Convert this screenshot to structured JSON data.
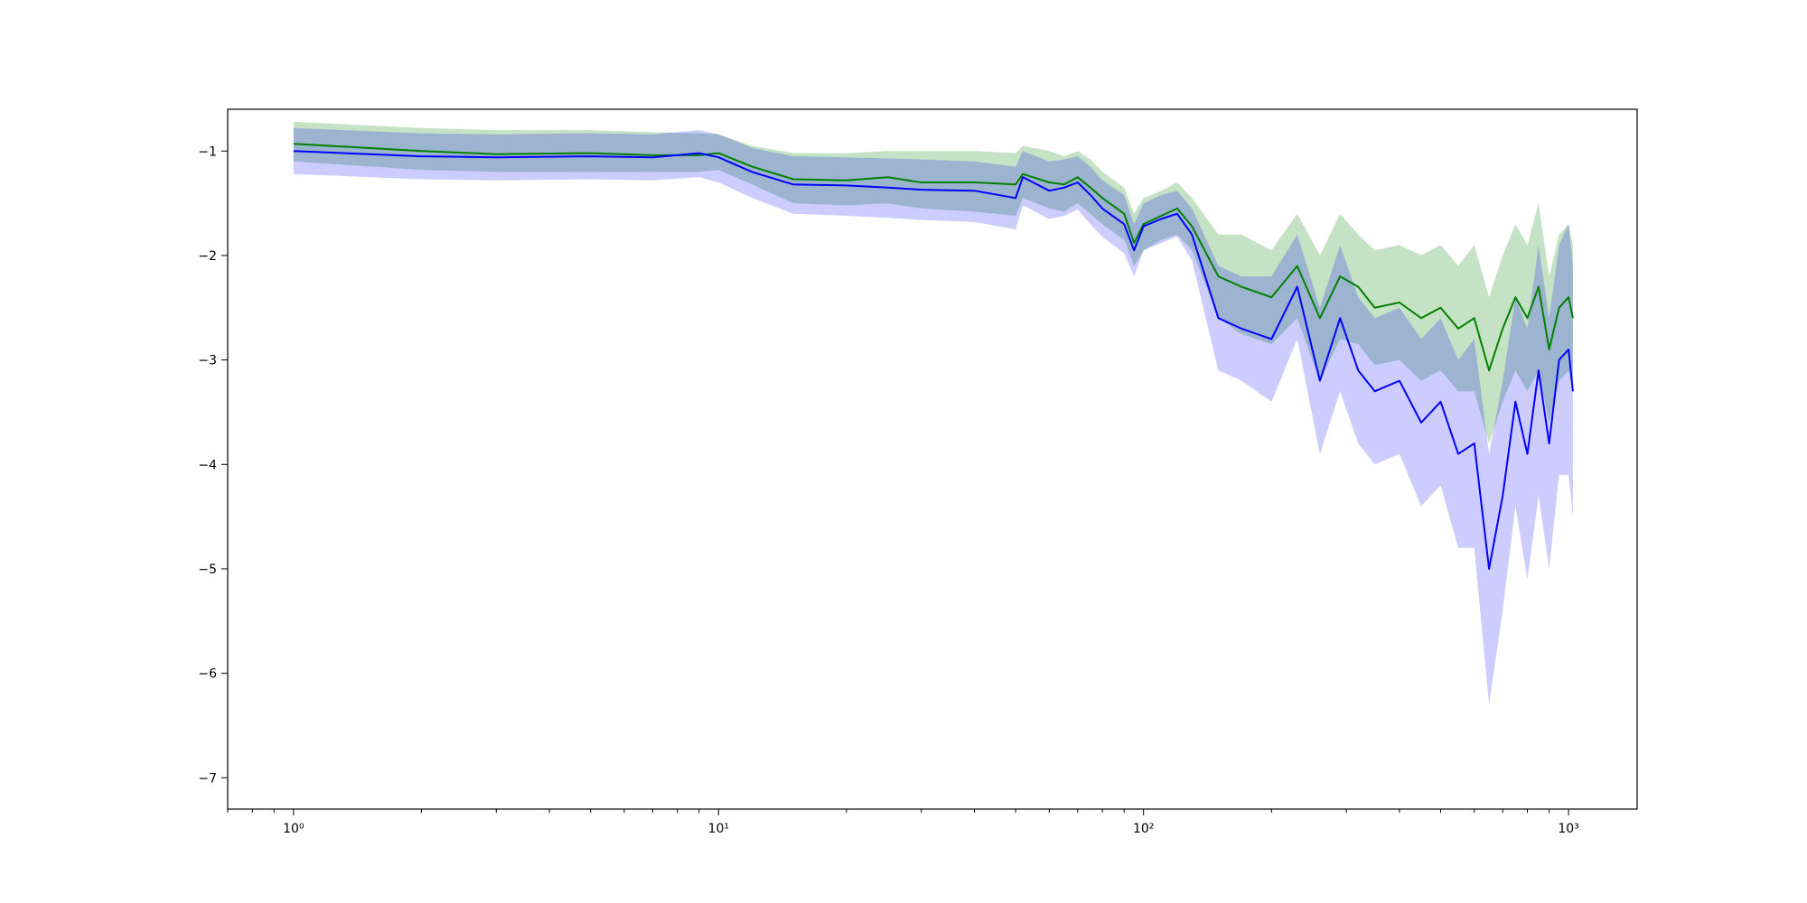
{
  "chart_data": {
    "type": "line",
    "title": "",
    "xlabel": "",
    "ylabel": "",
    "x_scale": "log",
    "xlim": [
      0.7,
      1450
    ],
    "ylim": [
      -7.3,
      -0.6
    ],
    "grid": false,
    "legend": "none",
    "x_ticks": [
      {
        "value": 1,
        "label": "10⁰"
      },
      {
        "value": 10,
        "label": "10¹"
      },
      {
        "value": 100,
        "label": "10²"
      },
      {
        "value": 1000,
        "label": "10³"
      }
    ],
    "y_ticks": [
      {
        "value": -1,
        "label": "−1"
      },
      {
        "value": -2,
        "label": "−2"
      },
      {
        "value": -3,
        "label": "−3"
      },
      {
        "value": -4,
        "label": "−4"
      },
      {
        "value": -5,
        "label": "−5"
      },
      {
        "value": -6,
        "label": "−6"
      },
      {
        "value": -7,
        "label": "−7"
      }
    ],
    "series": [
      {
        "color": "#008000",
        "band_color": "#7fbf7f",
        "band_opacity": 0.45,
        "x": [
          1,
          2,
          3,
          5,
          7,
          9,
          10,
          12,
          15,
          20,
          25,
          30,
          40,
          50,
          52,
          60,
          65,
          70,
          75,
          80,
          90,
          95,
          100,
          110,
          120,
          130,
          150,
          170,
          200,
          230,
          260,
          290,
          320,
          350,
          400,
          450,
          500,
          550,
          600,
          650,
          700,
          750,
          800,
          850,
          900,
          950,
          1000,
          1024
        ],
        "y": [
          -0.93,
          -1.0,
          -1.03,
          -1.02,
          -1.04,
          -1.04,
          -1.02,
          -1.15,
          -1.27,
          -1.28,
          -1.25,
          -1.3,
          -1.3,
          -1.32,
          -1.22,
          -1.3,
          -1.32,
          -1.25,
          -1.35,
          -1.45,
          -1.6,
          -1.88,
          -1.7,
          -1.62,
          -1.55,
          -1.72,
          -2.2,
          -2.3,
          -2.4,
          -2.1,
          -2.6,
          -2.2,
          -2.3,
          -2.5,
          -2.45,
          -2.6,
          -2.5,
          -2.7,
          -2.6,
          -3.1,
          -2.7,
          -2.4,
          -2.6,
          -2.3,
          -2.9,
          -2.5,
          -2.4,
          -2.6
        ],
        "upper": [
          -0.72,
          -0.78,
          -0.8,
          -0.8,
          -0.82,
          -0.83,
          -0.84,
          -0.95,
          -1.02,
          -1.02,
          -1.0,
          -1.0,
          -1.0,
          -1.02,
          -0.95,
          -1.0,
          -1.05,
          -1.0,
          -1.08,
          -1.2,
          -1.35,
          -1.6,
          -1.45,
          -1.38,
          -1.3,
          -1.45,
          -1.8,
          -1.8,
          -1.95,
          -1.6,
          -2.0,
          -1.6,
          -1.8,
          -1.95,
          -1.9,
          -2.0,
          -1.9,
          -2.1,
          -1.9,
          -2.4,
          -2.0,
          -1.7,
          -1.9,
          -1.5,
          -2.2,
          -1.8,
          -1.7,
          -1.9
        ],
        "lower": [
          -1.1,
          -1.18,
          -1.2,
          -1.2,
          -1.2,
          -1.2,
          -1.18,
          -1.32,
          -1.5,
          -1.52,
          -1.5,
          -1.55,
          -1.58,
          -1.62,
          -1.45,
          -1.55,
          -1.58,
          -1.5,
          -1.6,
          -1.7,
          -1.85,
          -2.1,
          -1.95,
          -1.85,
          -1.8,
          -1.95,
          -2.6,
          -2.75,
          -2.85,
          -2.6,
          -3.2,
          -2.8,
          -2.85,
          -3.05,
          -3.0,
          -3.2,
          -3.1,
          -3.3,
          -3.3,
          -3.8,
          -3.4,
          -3.1,
          -3.3,
          -3.1,
          -3.6,
          -3.2,
          -3.1,
          -3.3
        ]
      },
      {
        "color": "#0000ff",
        "band_color": "#0000ff",
        "band_opacity": 0.2,
        "x": [
          1,
          2,
          3,
          5,
          7,
          9,
          10,
          12,
          15,
          20,
          25,
          30,
          40,
          50,
          52,
          60,
          65,
          70,
          75,
          80,
          90,
          95,
          100,
          110,
          120,
          130,
          150,
          170,
          200,
          230,
          260,
          290,
          320,
          350,
          400,
          450,
          500,
          550,
          600,
          650,
          700,
          750,
          800,
          850,
          900,
          950,
          1000,
          1024
        ],
        "y": [
          -1.0,
          -1.05,
          -1.06,
          -1.05,
          -1.06,
          -1.02,
          -1.06,
          -1.2,
          -1.32,
          -1.33,
          -1.35,
          -1.37,
          -1.38,
          -1.45,
          -1.25,
          -1.38,
          -1.35,
          -1.3,
          -1.42,
          -1.55,
          -1.7,
          -1.95,
          -1.72,
          -1.65,
          -1.6,
          -1.8,
          -2.6,
          -2.7,
          -2.8,
          -2.3,
          -3.2,
          -2.6,
          -3.1,
          -3.3,
          -3.2,
          -3.6,
          -3.4,
          -3.9,
          -3.8,
          -5.0,
          -4.3,
          -3.4,
          -3.9,
          -3.1,
          -3.8,
          -3.0,
          -2.9,
          -3.3
        ],
        "upper": [
          -0.78,
          -0.83,
          -0.84,
          -0.83,
          -0.84,
          -0.8,
          -0.84,
          -0.97,
          -1.05,
          -1.06,
          -1.07,
          -1.08,
          -1.1,
          -1.15,
          -1.0,
          -1.1,
          -1.08,
          -1.05,
          -1.15,
          -1.28,
          -1.42,
          -1.7,
          -1.5,
          -1.42,
          -1.38,
          -1.55,
          -2.1,
          -2.2,
          -2.2,
          -1.8,
          -2.5,
          -1.9,
          -2.4,
          -2.6,
          -2.5,
          -2.8,
          -2.6,
          -3.0,
          -2.8,
          -3.9,
          -3.2,
          -2.4,
          -2.7,
          -1.9,
          -2.6,
          -1.9,
          -1.7,
          -2.1
        ],
        "lower": [
          -1.22,
          -1.27,
          -1.28,
          -1.27,
          -1.28,
          -1.25,
          -1.3,
          -1.45,
          -1.6,
          -1.62,
          -1.64,
          -1.66,
          -1.68,
          -1.75,
          -1.52,
          -1.65,
          -1.62,
          -1.56,
          -1.7,
          -1.82,
          -1.98,
          -2.2,
          -1.95,
          -1.88,
          -1.82,
          -2.05,
          -3.1,
          -3.2,
          -3.4,
          -2.8,
          -3.9,
          -3.3,
          -3.8,
          -4.0,
          -3.9,
          -4.4,
          -4.2,
          -4.8,
          -4.8,
          -6.3,
          -5.4,
          -4.4,
          -5.1,
          -4.3,
          -5.0,
          -4.1,
          -4.1,
          -4.5
        ]
      }
    ]
  }
}
